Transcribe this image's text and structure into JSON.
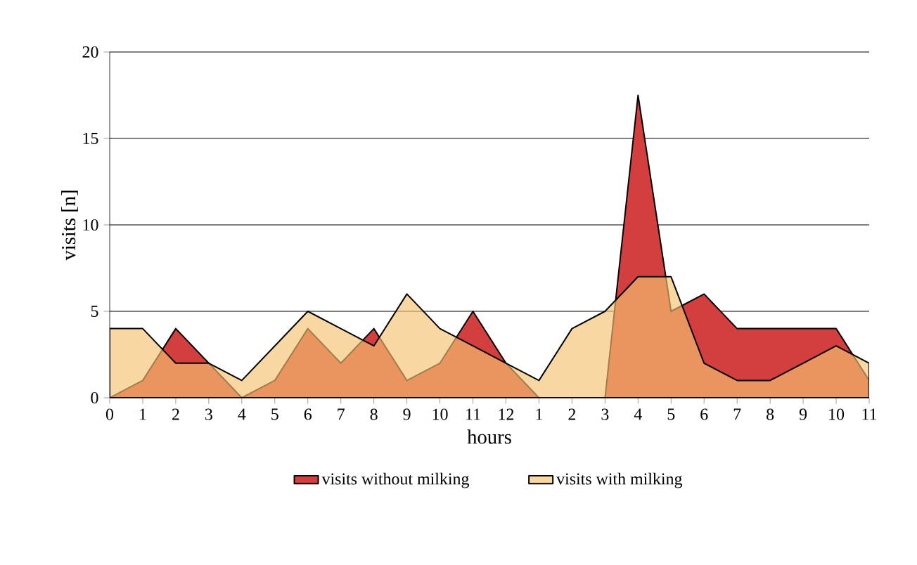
{
  "chart_data": {
    "type": "area",
    "xlabel": "hours",
    "ylabel": "visits [n]",
    "categories": [
      "0",
      "1",
      "2",
      "3",
      "4",
      "5",
      "6",
      "7",
      "8",
      "9",
      "10",
      "11",
      "12",
      "1",
      "2",
      "3",
      "4",
      "5",
      "6",
      "7",
      "8",
      "9",
      "10",
      "11"
    ],
    "series": [
      {
        "name": "visits without milking",
        "color": "#d33f3f",
        "values": [
          0,
          1,
          4,
          2,
          0,
          1,
          4,
          2,
          4,
          1,
          2,
          5,
          2,
          0,
          0,
          0,
          17.5,
          5,
          6,
          4,
          4,
          4,
          4,
          1
        ]
      },
      {
        "name": "visits with milking",
        "color": "#f6c272",
        "values": [
          4,
          4,
          2,
          2,
          1,
          3,
          5,
          4,
          3,
          6,
          4,
          3,
          2,
          1,
          4,
          5,
          7,
          7,
          2,
          1,
          1,
          2,
          3,
          2
        ]
      }
    ],
    "ylim": [
      0,
      20
    ],
    "yticks": [
      0,
      5,
      10,
      15,
      20
    ],
    "grid": "y",
    "legend": "bottom"
  }
}
